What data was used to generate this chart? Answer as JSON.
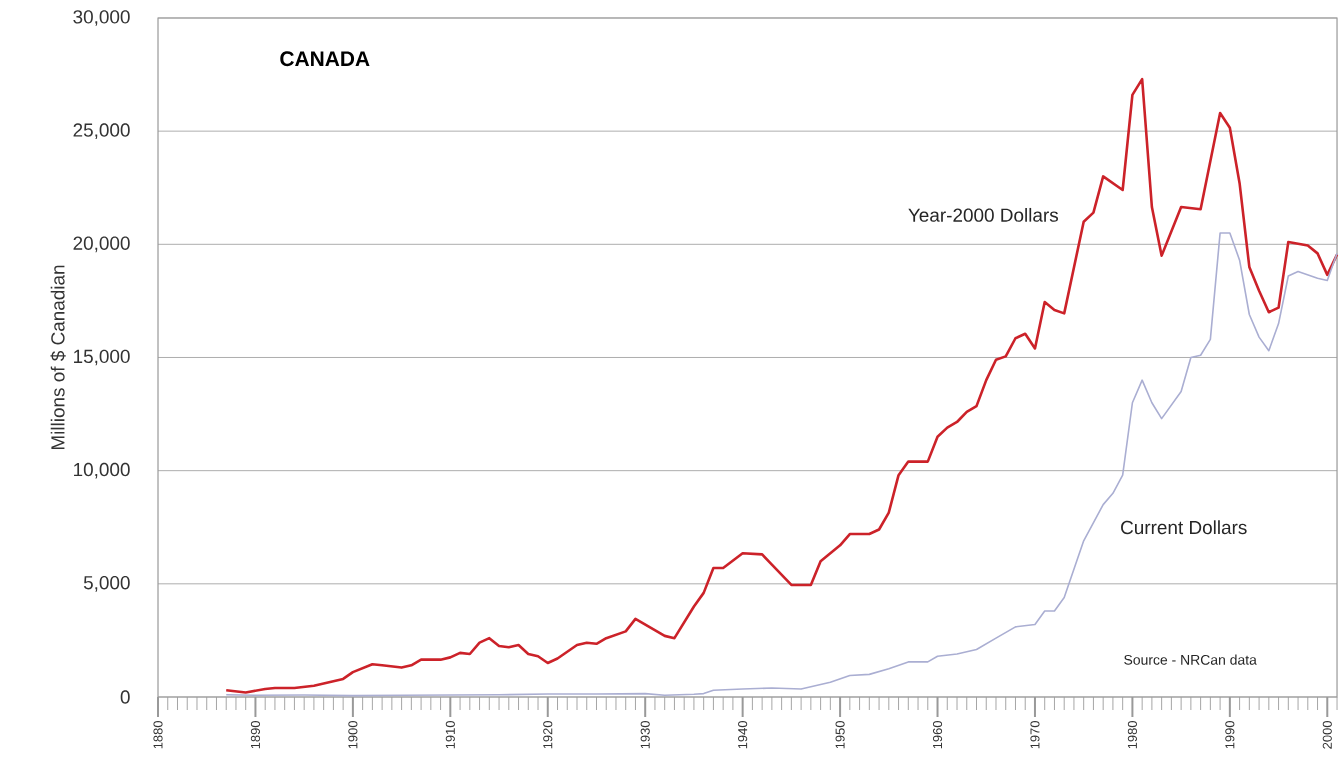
{
  "chart_data": {
    "type": "line",
    "title": "CANADA",
    "ylabel": "Millions of $ Canadian",
    "annotations": [
      "Source - NRCan data"
    ],
    "xlim": [
      1880,
      2001
    ],
    "ylim": [
      0,
      30000
    ],
    "xticks": [
      1880,
      1890,
      1900,
      1910,
      1920,
      1930,
      1940,
      1950,
      1960,
      1970,
      1980,
      1990,
      2000,
      {
        "value": 1881,
        "label": null
      },
      {
        "value": 1882,
        "label": null
      },
      {
        "value": 1883,
        "label": null
      },
      {
        "value": 1884,
        "label": null
      },
      {
        "value": 1885,
        "label": null
      },
      {
        "value": 1886,
        "label": null
      },
      {
        "value": 1887,
        "label": null
      },
      {
        "value": 1888,
        "label": null
      },
      {
        "value": 1889,
        "label": null
      },
      {
        "value": 1891,
        "label": null
      },
      {
        "value": 1892,
        "label": null
      },
      {
        "value": 1893,
        "label": null
      },
      {
        "value": 1894,
        "label": null
      },
      {
        "value": 1895,
        "label": null
      },
      {
        "value": 1896,
        "label": null
      },
      {
        "value": 1897,
        "label": null
      },
      {
        "value": 1898,
        "label": null
      },
      {
        "value": 1899,
        "label": null
      },
      {
        "value": 1901,
        "label": null
      },
      {
        "value": 1902,
        "label": null
      },
      {
        "value": 1903,
        "label": null
      },
      {
        "value": 1904,
        "label": null
      },
      {
        "value": 1905,
        "label": null
      },
      {
        "value": 1906,
        "label": null
      },
      {
        "value": 1907,
        "label": null
      },
      {
        "value": 1908,
        "label": null
      },
      {
        "value": 1909,
        "label": null
      },
      {
        "value": 1911,
        "label": null
      },
      {
        "value": 1912,
        "label": null
      },
      {
        "value": 1913,
        "label": null
      },
      {
        "value": 1914,
        "label": null
      },
      {
        "value": 1915,
        "label": null
      },
      {
        "value": 1916,
        "label": null
      },
      {
        "value": 1917,
        "label": null
      },
      {
        "value": 1918,
        "label": null
      },
      {
        "value": 1919,
        "label": null
      },
      {
        "value": 1921,
        "label": null
      },
      {
        "value": 1922,
        "label": null
      },
      {
        "value": 1923,
        "label": null
      },
      {
        "value": 1924,
        "label": null
      },
      {
        "value": 1925,
        "label": null
      },
      {
        "value": 1926,
        "label": null
      },
      {
        "value": 1927,
        "label": null
      },
      {
        "value": 1928,
        "label": null
      },
      {
        "value": 1929,
        "label": null
      },
      {
        "value": 1931,
        "label": null
      },
      {
        "value": 1932,
        "label": null
      },
      {
        "value": 1933,
        "label": null
      },
      {
        "value": 1934,
        "label": null
      },
      {
        "value": 1935,
        "label": null
      },
      {
        "value": 1936,
        "label": null
      },
      {
        "value": 1937,
        "label": null
      },
      {
        "value": 1938,
        "label": null
      },
      {
        "value": 1939,
        "label": null
      },
      {
        "value": 1941,
        "label": null
      },
      {
        "value": 1942,
        "label": null
      },
      {
        "value": 1943,
        "label": null
      },
      {
        "value": 1944,
        "label": null
      },
      {
        "value": 1945,
        "label": null
      },
      {
        "value": 1946,
        "label": null
      },
      {
        "value": 1947,
        "label": null
      },
      {
        "value": 1948,
        "label": null
      },
      {
        "value": 1949,
        "label": null
      },
      {
        "value": 1951,
        "label": null
      },
      {
        "value": 1952,
        "label": null
      },
      {
        "value": 1953,
        "label": null
      },
      {
        "value": 1954,
        "label": null
      },
      {
        "value": 1955,
        "label": null
      },
      {
        "value": 1956,
        "label": null
      },
      {
        "value": 1957,
        "label": null
      },
      {
        "value": 1958,
        "label": null
      },
      {
        "value": 1959,
        "label": null
      },
      {
        "value": 1961,
        "label": null
      },
      {
        "value": 1962,
        "label": null
      },
      {
        "value": 1963,
        "label": null
      },
      {
        "value": 1964,
        "label": null
      },
      {
        "value": 1965,
        "label": null
      },
      {
        "value": 1966,
        "label": null
      },
      {
        "value": 1967,
        "label": null
      },
      {
        "value": 1968,
        "label": null
      },
      {
        "value": 1969,
        "label": null
      },
      {
        "value": 1971,
        "label": null
      },
      {
        "value": 1972,
        "label": null
      },
      {
        "value": 1973,
        "label": null
      },
      {
        "value": 1974,
        "label": null
      },
      {
        "value": 1975,
        "label": null
      },
      {
        "value": 1976,
        "label": null
      },
      {
        "value": 1977,
        "label": null
      },
      {
        "value": 1978,
        "label": null
      },
      {
        "value": 1979,
        "label": null
      },
      {
        "value": 1981,
        "label": null
      },
      {
        "value": 1982,
        "label": null
      },
      {
        "value": 1983,
        "label": null
      },
      {
        "value": 1984,
        "label": null
      },
      {
        "value": 1985,
        "label": null
      },
      {
        "value": 1986,
        "label": null
      },
      {
        "value": 1987,
        "label": null
      },
      {
        "value": 1988,
        "label": null
      },
      {
        "value": 1989,
        "label": null
      },
      {
        "value": 1991,
        "label": null
      },
      {
        "value": 1992,
        "label": null
      },
      {
        "value": 1993,
        "label": null
      },
      {
        "value": 1994,
        "label": null
      },
      {
        "value": 1995,
        "label": null
      },
      {
        "value": 1996,
        "label": null
      },
      {
        "value": 1997,
        "label": null
      },
      {
        "value": 1998,
        "label": null
      },
      {
        "value": 1999,
        "label": null
      },
      {
        "value": 2001,
        "label": null
      }
    ],
    "yticks": [
      0,
      {
        "value": 5000,
        "label": "5,000"
      },
      {
        "value": 10000,
        "label": "10,000"
      },
      {
        "value": 15000,
        "label": "15,000"
      },
      {
        "value": 20000,
        "label": "20,000"
      },
      {
        "value": 25000,
        "label": "25,000"
      },
      {
        "value": 30000,
        "label": "30,000"
      }
    ],
    "grid": "y",
    "marker": "none",
    "line_style": "solid",
    "series": [
      {
        "name": "Year-2000 Dollars",
        "color": "#cc2229",
        "x": [
          1887,
          1889,
          1891,
          1892,
          1894,
          1896,
          1897,
          1899,
          1900,
          1902,
          1903,
          1905,
          1906,
          1907,
          1908,
          1909,
          1910,
          1911,
          1912,
          1913,
          1914,
          1915,
          1916,
          1917,
          1918,
          1919,
          1920,
          1921,
          1922,
          1923,
          1924,
          1925,
          1926,
          1928,
          1929,
          1932,
          1933,
          1935,
          1936,
          1937,
          1938,
          1940,
          1942,
          1943,
          1945,
          1947,
          1948,
          1950,
          1951,
          1953,
          1954,
          1955,
          1956,
          1957,
          1959,
          1960,
          1961,
          1962,
          1963,
          1964,
          1965,
          1966,
          1967,
          1968,
          1969,
          1970,
          1971,
          1972,
          1973,
          1975,
          1976,
          1977,
          1979,
          1980,
          1981,
          1982,
          1983,
          1985,
          1987,
          1989,
          1990,
          1991,
          1992,
          1993,
          1994,
          1995,
          1996,
          1998,
          1999,
          2000,
          2001
        ],
        "values": [
          300,
          200,
          350,
          400,
          400,
          500,
          600,
          800,
          1100,
          1450,
          1400,
          1300,
          1400,
          1650,
          1650,
          1650,
          1750,
          1950,
          1900,
          2400,
          2600,
          2250,
          2200,
          2300,
          1900,
          1800,
          1500,
          1700,
          2000,
          2300,
          2400,
          2350,
          2600,
          2900,
          3450,
          2700,
          2600,
          4000,
          4600,
          5700,
          5700,
          6350,
          6300,
          5850,
          4950,
          4950,
          6000,
          6700,
          7200,
          7200,
          7400,
          8150,
          9800,
          10400,
          10400,
          11500,
          11900,
          12150,
          12600,
          12850,
          14000,
          14900,
          15050,
          15850,
          16050,
          15400,
          17450,
          17100,
          16950,
          21000,
          21400,
          23000,
          22400,
          26600,
          27300,
          21650,
          19500,
          21650,
          21550,
          25800,
          25150,
          22700,
          19000,
          17950,
          17000,
          17200,
          20100,
          19950,
          19600,
          18650,
          19550
        ]
      },
      {
        "name": "Current Dollars",
        "color": "#aaaed2",
        "x": [
          1887,
          1890,
          1895,
          1900,
          1905,
          1910,
          1915,
          1920,
          1925,
          1930,
          1932,
          1935,
          1936,
          1937,
          1940,
          1943,
          1946,
          1949,
          1951,
          1953,
          1955,
          1957,
          1959,
          1960,
          1962,
          1964,
          1966,
          1968,
          1970,
          1971,
          1972,
          1973,
          1975,
          1977,
          1978,
          1979,
          1980,
          1981,
          1982,
          1983,
          1985,
          1986,
          1987,
          1988,
          1989,
          1990,
          1991,
          1992,
          1993,
          1994,
          1995,
          1996,
          1997,
          1999,
          2000,
          2001
        ],
        "values": [
          100,
          80,
          90,
          60,
          80,
          90,
          100,
          130,
          130,
          150,
          80,
          120,
          150,
          300,
          350,
          400,
          350,
          650,
          950,
          1000,
          1250,
          1550,
          1550,
          1800,
          1900,
          2100,
          2600,
          3100,
          3200,
          3800,
          3800,
          4400,
          6900,
          8500,
          9000,
          9800,
          13000,
          14000,
          13000,
          12300,
          13500,
          15000,
          15100,
          15800,
          20500,
          20500,
          19300,
          16900,
          15900,
          15300,
          16500,
          18600,
          18800,
          18500,
          18400,
          19600
        ]
      }
    ]
  }
}
